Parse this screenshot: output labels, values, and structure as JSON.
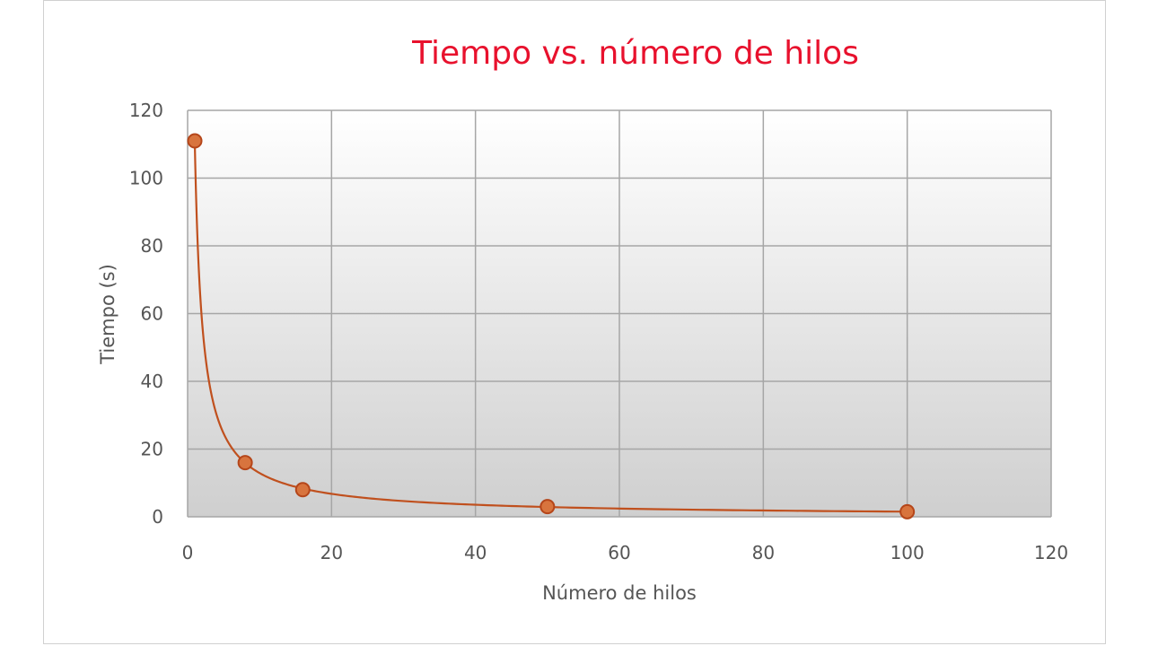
{
  "colors": {
    "title": "#e8112d",
    "series_line": "#c0501e",
    "marker_fill": "#d8743e",
    "marker_stroke": "#b5461a",
    "grid": "#a6a6a6",
    "plot_bg_top": "#ffffff",
    "plot_bg_bottom": "#cfcfcf",
    "text": "#555555"
  },
  "chart_data": {
    "type": "scatter",
    "title": "Tiempo  vs. número de hilos",
    "xlabel": "Número de hilos",
    "ylabel": "Tiempo  (s)",
    "xlim": [
      0,
      120
    ],
    "ylim": [
      0,
      120
    ],
    "xticks": [
      0,
      20,
      40,
      60,
      80,
      100,
      120
    ],
    "yticks": [
      0,
      20,
      40,
      60,
      80,
      100,
      120
    ],
    "grid": true,
    "legend": "none",
    "series": [
      {
        "points": [
          {
            "x": 1,
            "y": 111
          },
          {
            "x": 8,
            "y": 16
          },
          {
            "x": 16,
            "y": 8
          },
          {
            "x": 50,
            "y": 3
          },
          {
            "x": 100,
            "y": 1.5
          }
        ],
        "trendline": "power"
      }
    ]
  }
}
